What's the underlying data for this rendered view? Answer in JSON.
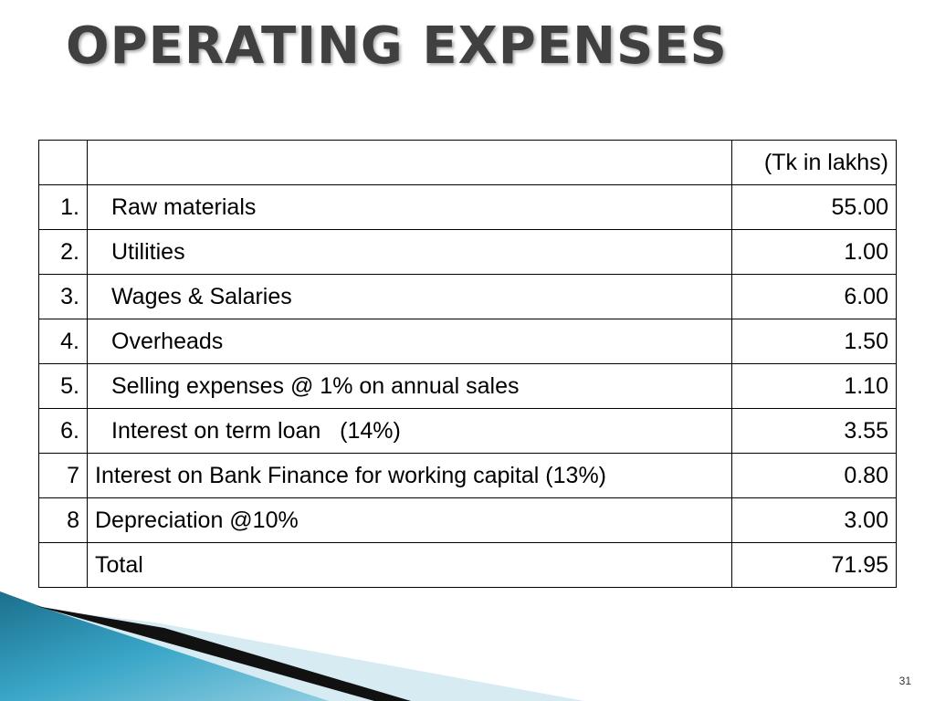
{
  "slide": {
    "title": "OPERATING EXPENSES",
    "page_number": "31"
  },
  "table": {
    "unit_header": "(Tk in lakhs)",
    "rows": [
      {
        "no": "1.",
        "label": "Raw materials",
        "amount": "55.00"
      },
      {
        "no": "2.",
        "label": "Utilities",
        "amount": "1.00"
      },
      {
        "no": "3.",
        "label": "Wages & Salaries",
        "amount": "6.00"
      },
      {
        "no": "4.",
        "label": "Overheads",
        "amount": "1.50"
      },
      {
        "no": "5.",
        "label": "Selling expenses @ 1% on annual sales",
        "amount": "1.10"
      },
      {
        "no": "6.",
        "label": "Interest on term loan   (14%)",
        "amount": "3.55"
      },
      {
        "no": "7",
        "label": "Interest on Bank Finance for working capital (13%)",
        "amount": "0.80"
      },
      {
        "no": "8",
        "label": "Depreciation @10%",
        "amount": "3.00"
      }
    ],
    "total": {
      "label": "Total",
      "amount": "71.95"
    }
  },
  "theme": {
    "title_color": "#404040",
    "accent_dark": "#1a1a1a",
    "accent_teal": "#2a8fb0",
    "accent_light": "#cde6ef"
  }
}
